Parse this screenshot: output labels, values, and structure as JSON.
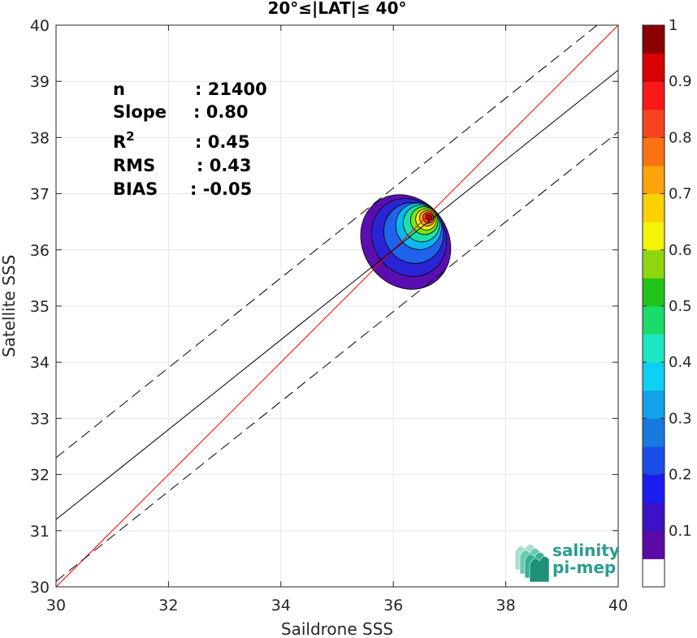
{
  "chart_data": {
    "type": "scatter",
    "title": "20°≤|LAT|≤ 40°",
    "xlabel": "Saildrone SSS",
    "ylabel": "Satellite SSS",
    "xlim": [
      30,
      40
    ],
    "ylim": [
      30,
      40
    ],
    "xticks": [
      30,
      32,
      34,
      36,
      38,
      40
    ],
    "yticks": [
      30,
      31,
      32,
      33,
      34,
      35,
      36,
      37,
      38,
      39,
      40
    ],
    "grid": true,
    "stats": [
      {
        "label": "n",
        "value": ": 21400"
      },
      {
        "label": "Slope",
        "value": ": 0.80"
      },
      {
        "label": "R",
        "sup": "2",
        "value": ": 0.45"
      },
      {
        "label": "RMS",
        "value": ": 0.43"
      },
      {
        "label": "BIAS",
        "value": ": -0.05"
      }
    ],
    "lines": {
      "identity": {
        "color": "#ff0000",
        "x": [
          30,
          40
        ],
        "y": [
          30,
          40
        ]
      },
      "regression": {
        "color": "#000000",
        "x": [
          30,
          40
        ],
        "y": [
          31.2,
          39.2
        ]
      },
      "upper_bound": {
        "color": "#000000",
        "dash": true,
        "x": [
          30,
          40
        ],
        "y": [
          32.3,
          40.3
        ]
      },
      "lower_bound": {
        "color": "#000000",
        "dash": true,
        "x": [
          30,
          40
        ],
        "y": [
          30.1,
          38.1
        ]
      }
    },
    "density_contours": [
      {
        "level": 0.05,
        "color": "#5b0eb0",
        "center": [
          36.22,
          36.14
        ],
        "rx": 0.76,
        "ry": 0.88
      },
      {
        "level": 0.15,
        "color": "#2a24d4",
        "center": [
          36.28,
          36.22
        ],
        "rx": 0.64,
        "ry": 0.72
      },
      {
        "level": 0.25,
        "color": "#1f63ea",
        "center": [
          36.36,
          36.3
        ],
        "rx": 0.52,
        "ry": 0.55
      },
      {
        "level": 0.35,
        "color": "#0ab7ef",
        "center": [
          36.45,
          36.42
        ],
        "rx": 0.4,
        "ry": 0.42
      },
      {
        "level": 0.45,
        "color": "#1de2a3",
        "center": [
          36.5,
          36.47
        ],
        "rx": 0.32,
        "ry": 0.33
      },
      {
        "level": 0.55,
        "color": "#7ae615",
        "center": [
          36.55,
          36.52
        ],
        "rx": 0.24,
        "ry": 0.25
      },
      {
        "level": 0.65,
        "color": "#f6e80f",
        "center": [
          36.58,
          36.54
        ],
        "rx": 0.18,
        "ry": 0.19
      },
      {
        "level": 0.75,
        "color": "#fba71b",
        "center": [
          36.6,
          36.56
        ],
        "rx": 0.13,
        "ry": 0.14
      },
      {
        "level": 0.85,
        "color": "#f7441c",
        "center": [
          36.62,
          36.57
        ],
        "rx": 0.09,
        "ry": 0.1
      },
      {
        "level": 0.95,
        "color": "#b20000",
        "center": [
          36.63,
          36.58
        ],
        "rx": 0.05,
        "ry": 0.06
      }
    ],
    "colorbar": {
      "range": [
        0,
        1
      ],
      "ticks": [
        "0.1",
        "0.2",
        "0.3",
        "0.4",
        "0.5",
        "0.6",
        "0.7",
        "0.8",
        "0.9",
        "1"
      ],
      "colors": [
        "#ffffff",
        "#5b0aa8",
        "#3d12c6",
        "#1b1cf0",
        "#1a4de8",
        "#1879e0",
        "#11a3e9",
        "#0dd0f5",
        "#1ee8c4",
        "#19dc6a",
        "#21c41a",
        "#8ed610",
        "#f4f30a",
        "#fbd004",
        "#fba40b",
        "#f97312",
        "#f4431d",
        "#fb1818",
        "#d90202",
        "#8b0000"
      ]
    },
    "logo": {
      "line1": "salinity",
      "line2": "pi-mep"
    }
  }
}
